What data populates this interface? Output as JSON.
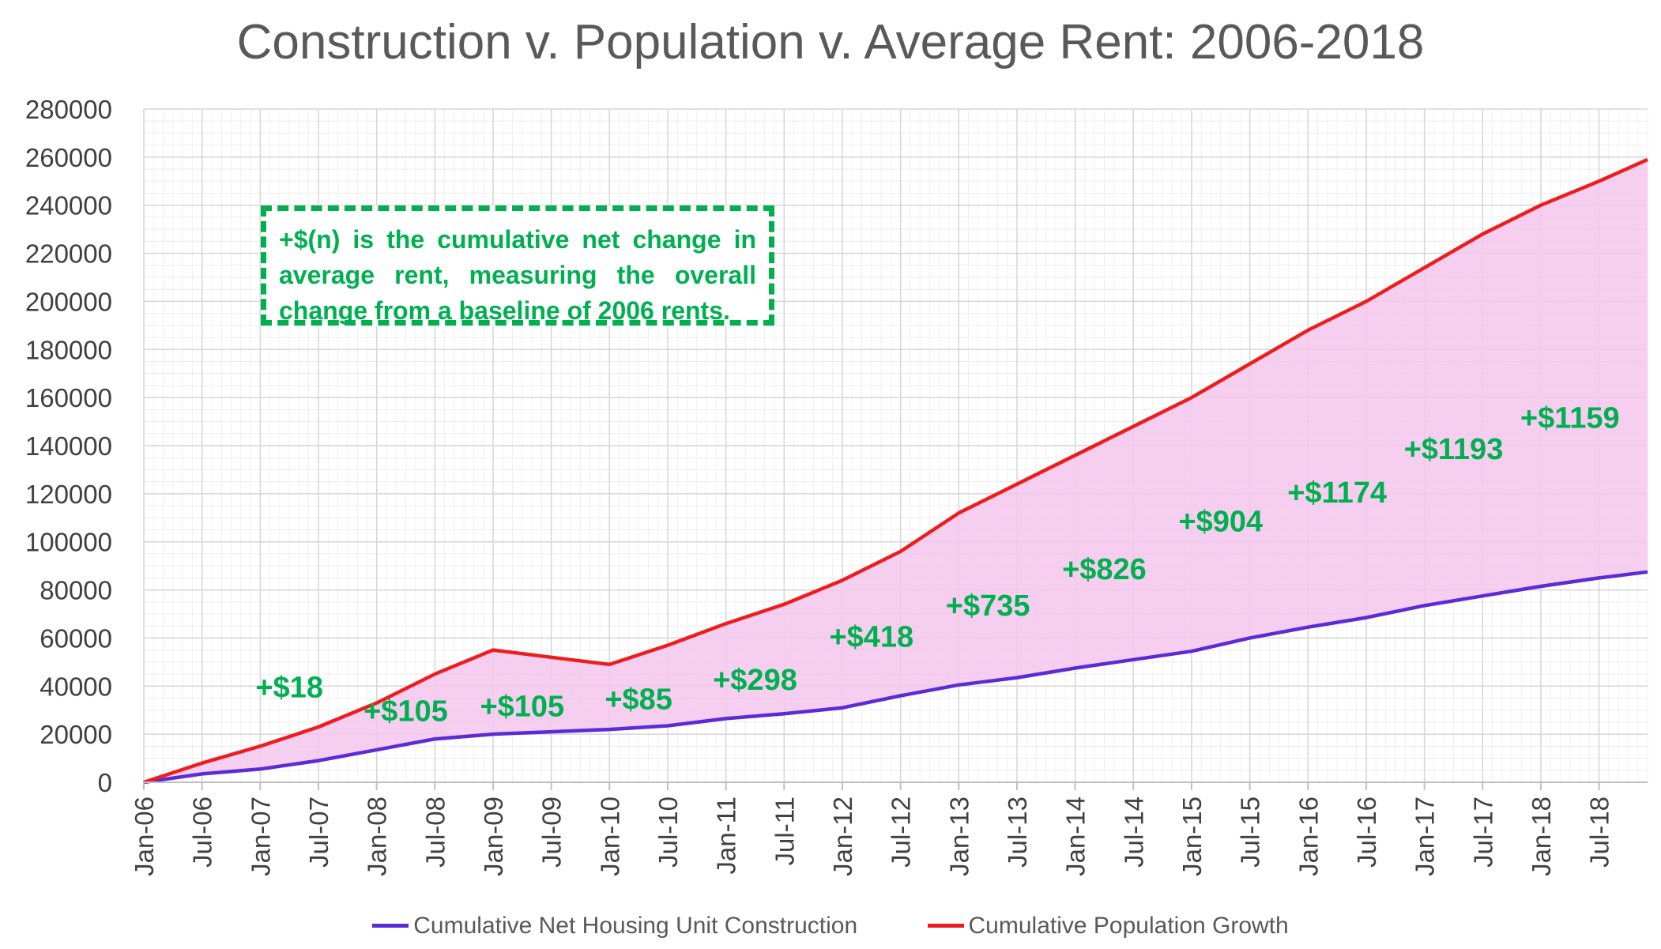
{
  "chart_data": {
    "type": "area",
    "title": "Construction v. Population v. Average Rent: 2006-2018",
    "xlabel": "",
    "ylabel": "",
    "ylim": [
      0,
      280000
    ],
    "yticks": [
      "0",
      "20000",
      "40000",
      "60000",
      "80000",
      "100000",
      "120000",
      "140000",
      "160000",
      "180000",
      "200000",
      "220000",
      "240000",
      "260000",
      "280000"
    ],
    "xticks": [
      "Jan-06",
      "Jul-06",
      "Jan-07",
      "Jul-07",
      "Jan-08",
      "Jul-08",
      "Jan-09",
      "Jul-09",
      "Jan-10",
      "Jul-10",
      "Jan-11",
      "Jul-11",
      "Jan-12",
      "Jul-12",
      "Jan-13",
      "Jul-13",
      "Jan-14",
      "Jul-14",
      "Jan-15",
      "Jul-15",
      "Jan-16",
      "Jul-16",
      "Jan-17",
      "Jul-17",
      "Jan-18",
      "Jul-18"
    ],
    "grid": true,
    "legend_position": "bottom",
    "series": [
      {
        "name": "Cumulative Net Housing Unit Construction",
        "color": "#5b2bd6",
        "points": [
          [
            "Jan-06",
            0
          ],
          [
            "Jul-06",
            3500
          ],
          [
            "Jan-07",
            5500
          ],
          [
            "Jul-07",
            9000
          ],
          [
            "Jan-08",
            13500
          ],
          [
            "Jul-08",
            18000
          ],
          [
            "Jan-09",
            20000
          ],
          [
            "Jul-09",
            21000
          ],
          [
            "Jan-10",
            22000
          ],
          [
            "Jul-10",
            23500
          ],
          [
            "Jan-11",
            26500
          ],
          [
            "Jul-11",
            28500
          ],
          [
            "Jan-12",
            31000
          ],
          [
            "Jul-12",
            36000
          ],
          [
            "Jan-13",
            40500
          ],
          [
            "Jul-13",
            43500
          ],
          [
            "Jan-14",
            47500
          ],
          [
            "Jul-14",
            51000
          ],
          [
            "Jan-15",
            54500
          ],
          [
            "Jul-15",
            60000
          ],
          [
            "Jan-16",
            64500
          ],
          [
            "Jul-16",
            68500
          ],
          [
            "Jan-17",
            73500
          ],
          [
            "Jul-17",
            77500
          ],
          [
            "Jan-18",
            81500
          ],
          [
            "Jul-18",
            85000
          ],
          [
            "Dec-18",
            87500
          ]
        ]
      },
      {
        "name": "Cumulative Population Growth",
        "color": "#ee1c1c",
        "points": [
          [
            "Jan-06",
            0
          ],
          [
            "Jul-06",
            8000
          ],
          [
            "Jan-07",
            15000
          ],
          [
            "Jul-07",
            23000
          ],
          [
            "Jan-08",
            33000
          ],
          [
            "Jul-08",
            45000
          ],
          [
            "Jan-09",
            55000
          ],
          [
            "Jul-09",
            52000
          ],
          [
            "Jan-10",
            49000
          ],
          [
            "Jul-10",
            57000
          ],
          [
            "Jan-11",
            66000
          ],
          [
            "Jul-11",
            74000
          ],
          [
            "Jan-12",
            84000
          ],
          [
            "Jul-12",
            96000
          ],
          [
            "Jan-13",
            112000
          ],
          [
            "Jul-13",
            124000
          ],
          [
            "Jan-14",
            136000
          ],
          [
            "Jul-14",
            148000
          ],
          [
            "Jan-15",
            160000
          ],
          [
            "Jul-15",
            174000
          ],
          [
            "Jan-16",
            188000
          ],
          [
            "Jul-16",
            200000
          ],
          [
            "Jan-17",
            214000
          ],
          [
            "Jul-17",
            228000
          ],
          [
            "Jan-18",
            240000
          ],
          [
            "Jul-18",
            250000
          ],
          [
            "Dec-18",
            259000
          ]
        ]
      }
    ],
    "fill_between_color": "#f5c6ec",
    "annotations": [
      {
        "text": "+$18",
        "x": "Apr-07",
        "y": 40000
      },
      {
        "text": "+$105",
        "x": "Apr-08",
        "y": 30000
      },
      {
        "text": "+$105",
        "x": "Apr-09",
        "y": 32000
      },
      {
        "text": "+$85",
        "x": "Apr-10",
        "y": 35000
      },
      {
        "text": "+$298",
        "x": "Apr-11",
        "y": 43000
      },
      {
        "text": "+$418",
        "x": "Apr-12",
        "y": 61000
      },
      {
        "text": "+$735",
        "x": "Apr-13",
        "y": 74000
      },
      {
        "text": "+$826",
        "x": "Apr-14",
        "y": 89000
      },
      {
        "text": "+$904",
        "x": "Apr-15",
        "y": 109000
      },
      {
        "text": "+$1174",
        "x": "Apr-16",
        "y": 121000
      },
      {
        "text": "+$1193",
        "x": "Apr-17",
        "y": 139000
      },
      {
        "text": "+$1159",
        "x": "Apr-18",
        "y": 152000
      }
    ],
    "note": "+$(n) is the cumulative net change in average rent, measuring the overall change from a baseline of 2006 rents."
  }
}
